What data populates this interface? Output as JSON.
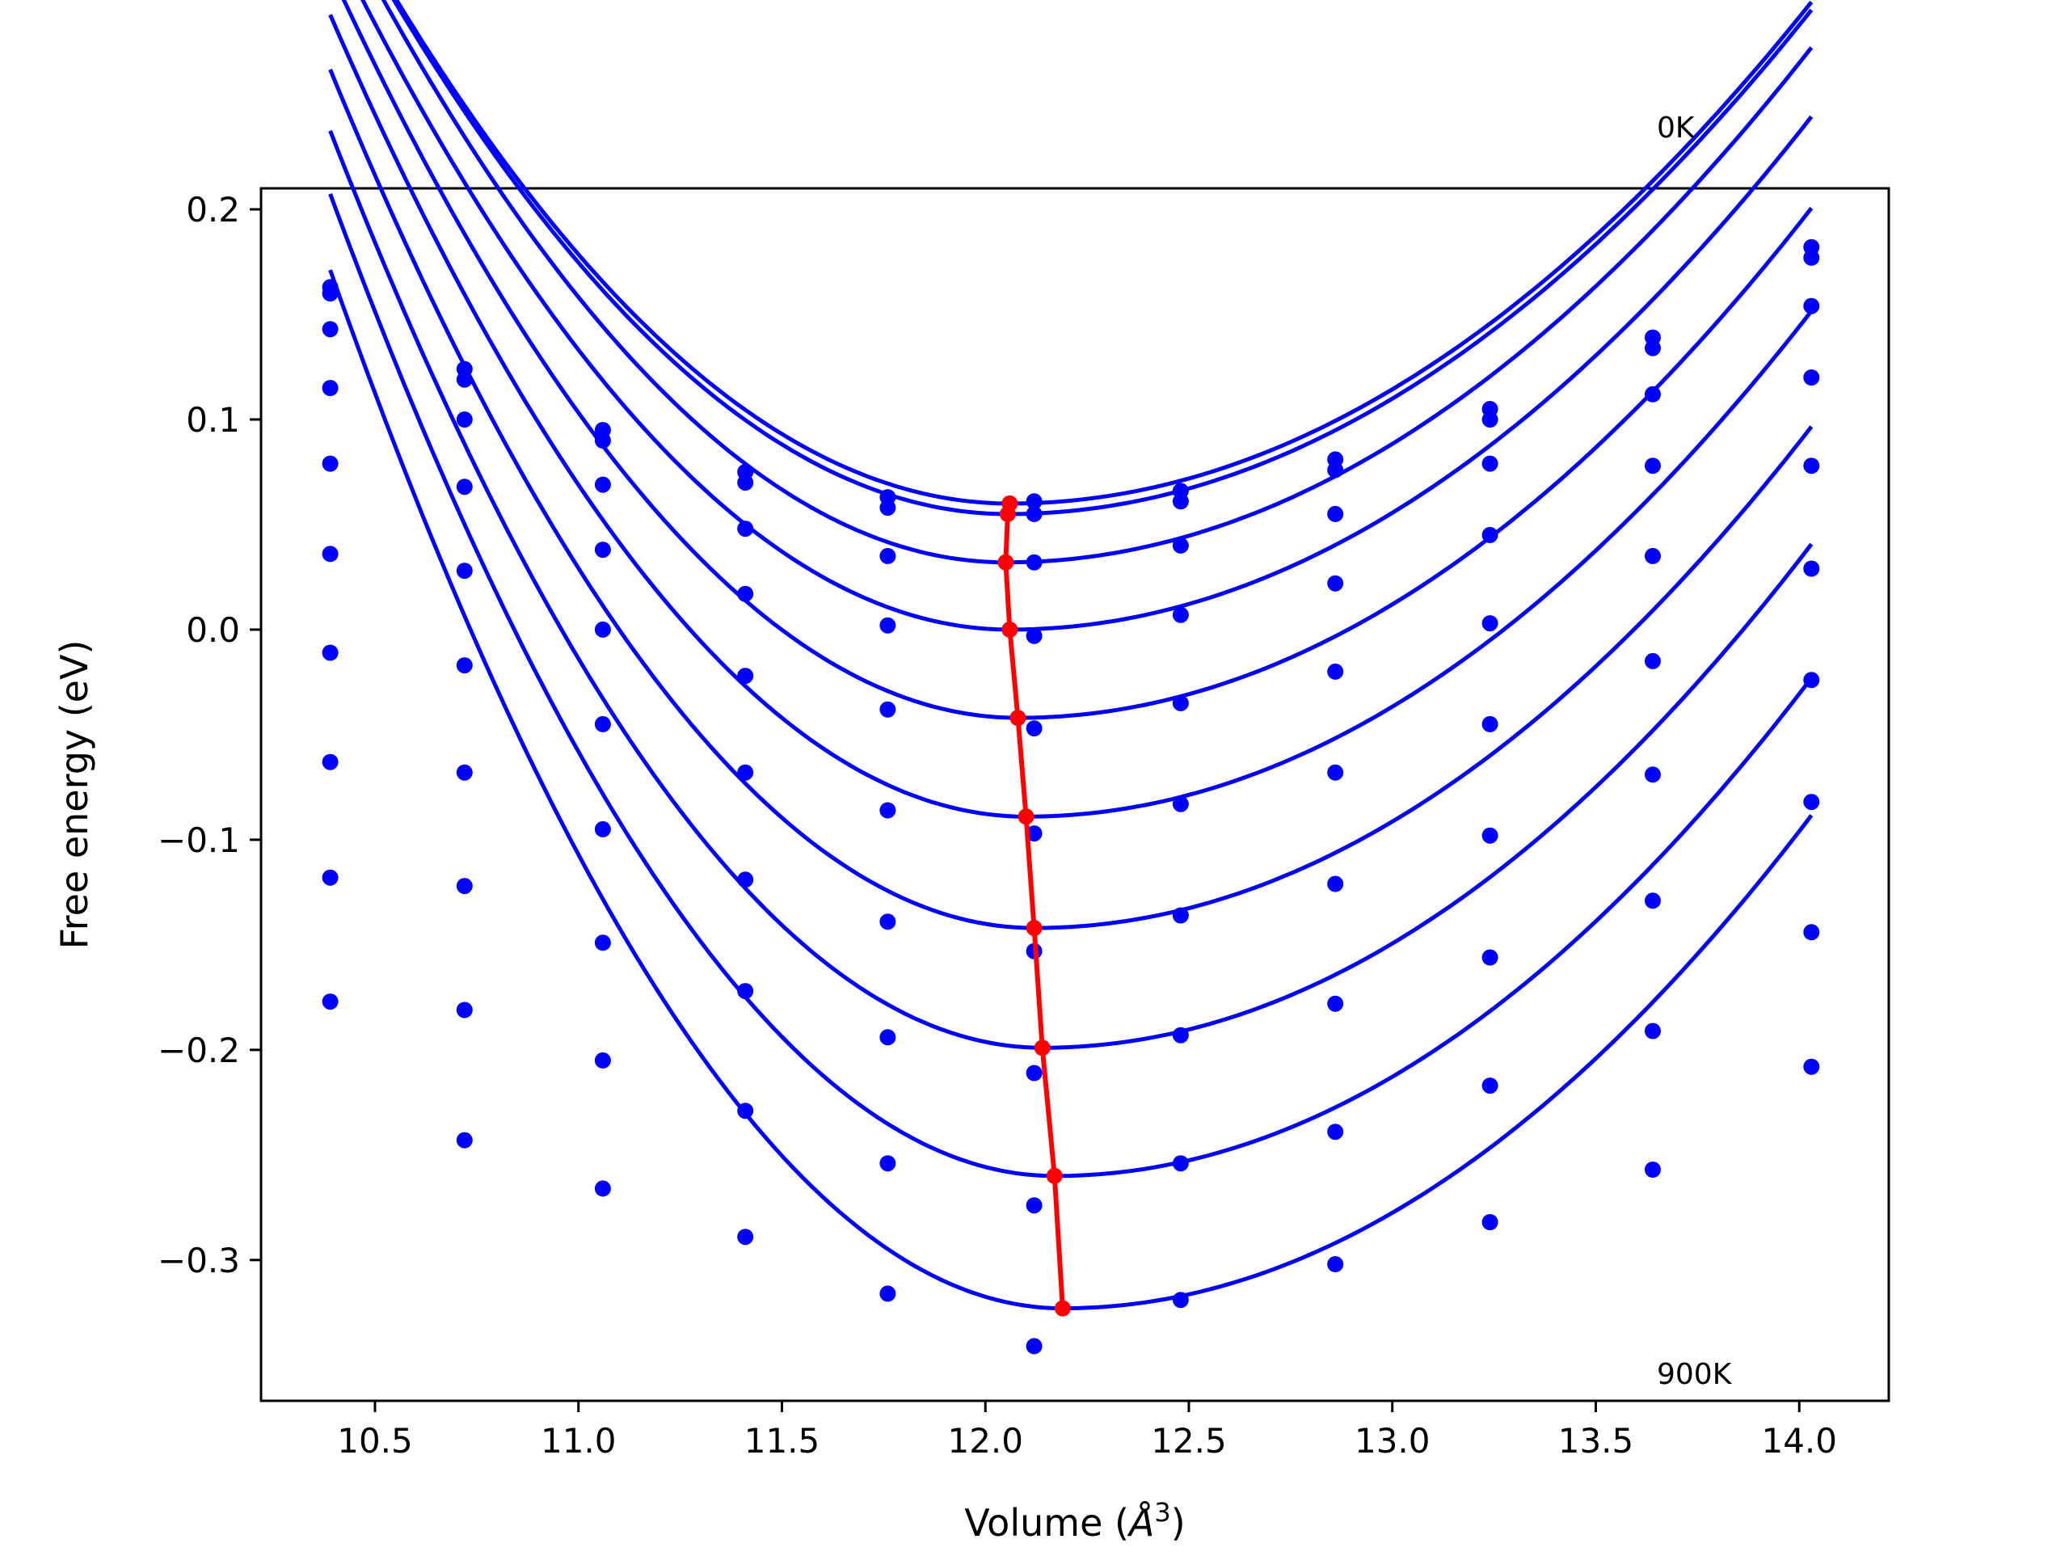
{
  "chart_data": {
    "type": "scatter",
    "title": "",
    "xlabel": "Volume ($\\AA^3$)",
    "xlabel_text": "Volume (",
    "xlabel_unit_symbol": "Å",
    "xlabel_unit_exponent": "3",
    "xlabel_close": ")",
    "ylabel": "Free energy (eV)",
    "xlim": [
      10.22,
      14.22
    ],
    "ylim": [
      -0.367,
      0.21
    ],
    "xticks": [
      10.5,
      11.0,
      11.5,
      12.0,
      12.5,
      13.0,
      13.5,
      14.0
    ],
    "xtick_labels": [
      "10.5",
      "11.0",
      "11.5",
      "12.0",
      "12.5",
      "13.0",
      "13.5",
      "14.0"
    ],
    "yticks": [
      0.2,
      0.1,
      0.0,
      -0.1,
      -0.2,
      -0.3
    ],
    "ytick_labels": [
      "0.2",
      "0.1",
      "0.0",
      "−0.1",
      "−0.2",
      "−0.3"
    ],
    "grid": false,
    "annotations": [
      {
        "text": "0K",
        "x": 13.63,
        "y": 0.235
      },
      {
        "text": "900K",
        "x": 13.63,
        "y": -0.36
      }
    ],
    "x": [
      10.39,
      10.72,
      11.06,
      11.41,
      11.76,
      12.12,
      12.48,
      12.86,
      13.24,
      13.64,
      14.03
    ],
    "series": [
      {
        "points": [
          0.163,
          0.124,
          0.095,
          0.075,
          0.063,
          0.061,
          0.066,
          0.081,
          0.105,
          0.139,
          0.182
        ],
        "fit": {
          "vmin": 12.06,
          "fmin": 0.06,
          "left": 0.1055,
          "right": 0.0615
        }
      },
      {
        "points": [
          0.16,
          0.119,
          0.09,
          0.07,
          0.058,
          0.055,
          0.061,
          0.076,
          0.1,
          0.134,
          0.177
        ],
        "fit": {
          "vmin": 12.055,
          "fmin": 0.055,
          "left": 0.1075,
          "right": 0.0615
        }
      },
      {
        "points": [
          0.143,
          0.1,
          0.069,
          0.048,
          0.035,
          0.032,
          0.04,
          0.055,
          0.079,
          0.112,
          0.154
        ],
        "fit": {
          "vmin": 12.05,
          "fmin": 0.032,
          "left": 0.1145,
          "right": 0.0625
        }
      },
      {
        "points": [
          0.115,
          0.068,
          0.038,
          0.017,
          0.002,
          -0.003,
          0.007,
          0.022,
          0.045,
          0.078,
          0.12
        ],
        "fit": {
          "vmin": 12.06,
          "fmin": 0.0,
          "left": 0.1185,
          "right": 0.0629
        }
      },
      {
        "points": [
          0.079,
          0.028,
          0.0,
          -0.022,
          -0.038,
          -0.047,
          -0.035,
          -0.02,
          0.003,
          0.035,
          0.078
        ],
        "fit": {
          "vmin": 12.08,
          "fmin": -0.042,
          "left": 0.1245,
          "right": 0.0638
        }
      },
      {
        "points": [
          0.036,
          -0.017,
          -0.045,
          -0.068,
          -0.086,
          -0.097,
          -0.083,
          -0.068,
          -0.045,
          -0.015,
          0.029
        ],
        "fit": {
          "vmin": 12.1,
          "fmin": -0.089,
          "left": 0.1305,
          "right": 0.0646
        }
      },
      {
        "points": [
          -0.011,
          -0.068,
          -0.095,
          -0.119,
          -0.139,
          -0.153,
          -0.136,
          -0.121,
          -0.098,
          -0.069,
          -0.024
        ],
        "fit": {
          "vmin": 12.12,
          "fmin": -0.142,
          "left": 0.1365,
          "right": 0.0654
        }
      },
      {
        "points": [
          -0.063,
          -0.122,
          -0.149,
          -0.172,
          -0.194,
          -0.211,
          -0.193,
          -0.178,
          -0.156,
          -0.129,
          -0.082
        ],
        "fit": {
          "vmin": 12.14,
          "fmin": -0.199,
          "left": 0.1425,
          "right": 0.0671
        }
      },
      {
        "points": [
          -0.118,
          -0.181,
          -0.205,
          -0.229,
          -0.254,
          -0.274,
          -0.254,
          -0.239,
          -0.217,
          -0.191,
          -0.144
        ],
        "fit": {
          "vmin": 12.17,
          "fmin": -0.26,
          "left": 0.1475,
          "right": 0.0685
        }
      },
      {
        "points": [
          -0.177,
          -0.243,
          -0.266,
          -0.289,
          -0.316,
          -0.341,
          -0.319,
          -0.302,
          -0.282,
          -0.257,
          -0.208
        ],
        "fit": {
          "vmin": 12.19,
          "fmin": -0.323,
          "left": 0.1525,
          "right": 0.0693
        }
      }
    ],
    "equilibrium_line": {
      "x": [
        12.06,
        12.055,
        12.05,
        12.06,
        12.08,
        12.1,
        12.12,
        12.14,
        12.17,
        12.19
      ],
      "y": [
        0.06,
        0.055,
        0.032,
        0.0,
        -0.042,
        -0.089,
        -0.142,
        -0.199,
        -0.26,
        -0.323
      ]
    },
    "colors": {
      "series": "#0000ff",
      "equilibrium": "#ff0000",
      "axes": "#000000"
    }
  }
}
